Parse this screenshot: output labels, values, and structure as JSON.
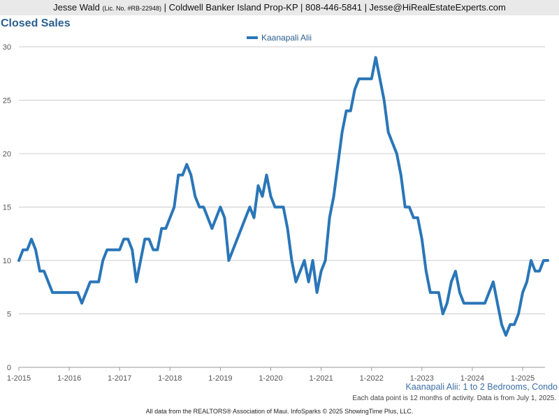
{
  "header": {
    "agent_name": "Jesse Wald",
    "license": "(Lic. No. #RB-22948)",
    "details": "| Coldwell Banker Island Prop-KP | 808-446-5841 | Jesse@HiRealEstateExperts.com"
  },
  "footer": {
    "subtitle": "Kaanapali Alii: 1 to 2 Bedrooms, Condo",
    "note": "Each data point is 12 months of activity. Data is from July 1, 2025.",
    "source": "All data from the REALTORS® Association of Maui. InfoSparks © 2025 ShowingTime Plus, LLC."
  },
  "colors": {
    "series": "#2a76b8",
    "title": "#2b5f8f",
    "grid": "#cccccc"
  },
  "chart_data": {
    "type": "line",
    "title": "Closed Sales",
    "xlabel": "",
    "ylabel": "",
    "ylim": [
      0,
      30
    ],
    "yticks": [
      0,
      5,
      10,
      15,
      20,
      25,
      30
    ],
    "x_start": "2015-01",
    "xticks": [
      "1-2015",
      "1-2016",
      "1-2017",
      "1-2018",
      "1-2019",
      "1-2020",
      "1-2021",
      "1-2022",
      "1-2023",
      "1-2024",
      "1-2025"
    ],
    "grid": true,
    "legend_position": "top-center",
    "series": [
      {
        "name": "Kaanapali Alii",
        "values": [
          10,
          11,
          11,
          12,
          11,
          9,
          9,
          8,
          7,
          7,
          7,
          7,
          7,
          7,
          7,
          6,
          7,
          8,
          8,
          8,
          10,
          11,
          11,
          11,
          11,
          12,
          12,
          11,
          8,
          10,
          12,
          12,
          11,
          11,
          13,
          13,
          14,
          15,
          18,
          18,
          19,
          18,
          16,
          15,
          15,
          14,
          13,
          14,
          15,
          14,
          10,
          11,
          12,
          13,
          14,
          15,
          14,
          17,
          16,
          18,
          16,
          15,
          15,
          15,
          13,
          10,
          8,
          9,
          10,
          8,
          10,
          7,
          9,
          10,
          14,
          16,
          19,
          22,
          24,
          24,
          26,
          27,
          27,
          27,
          27,
          29,
          27,
          25,
          22,
          21,
          20,
          18,
          15,
          15,
          14,
          14,
          12,
          9,
          7,
          7,
          7,
          5,
          6,
          8,
          9,
          7,
          6,
          6,
          6,
          6,
          6,
          6,
          7,
          8,
          6,
          4,
          3,
          4,
          4,
          5,
          7,
          8,
          10,
          9,
          9,
          10,
          10
        ]
      }
    ]
  }
}
